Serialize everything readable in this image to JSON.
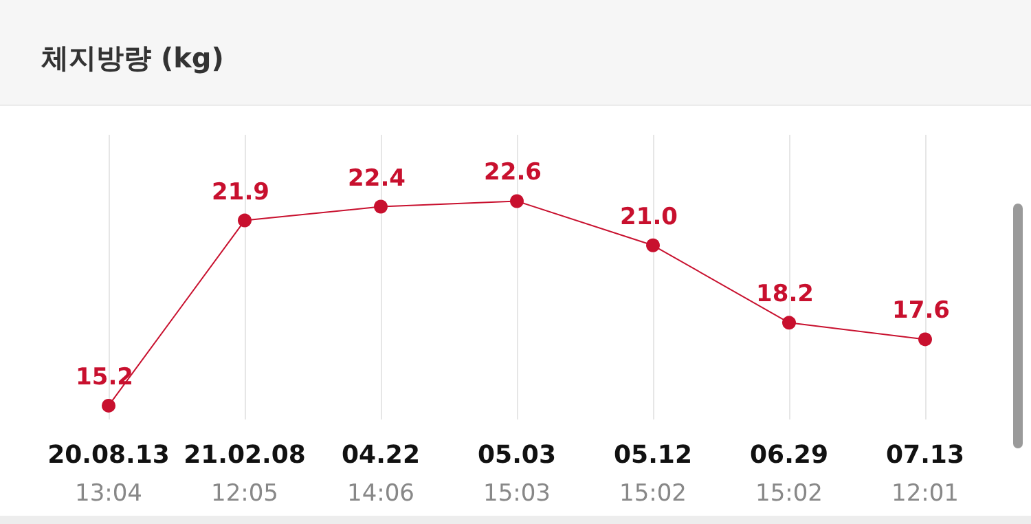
{
  "chart_data": {
    "type": "line",
    "title": "체지방량 (kg)",
    "categories": [
      "20.08.13\n13:04",
      "21.02.08\n12:05",
      "04.22\n14:06",
      "05.03\n15:03",
      "05.12\n15:02",
      "06.29\n15:02",
      "07.13\n12:01"
    ],
    "series": [
      {
        "color": "#c8102e",
        "values": [
          15.2,
          21.9,
          22.4,
          22.6,
          21.0,
          18.2,
          17.6
        ],
        "value_labels": [
          "15.2",
          "21.9",
          "22.4",
          "22.6",
          "21.0",
          "18.2",
          "17.6"
        ]
      }
    ],
    "ylim": [
      14.7,
      25
    ],
    "tick_labels": "x",
    "grid": "x",
    "marker": "circle",
    "line_style": "solid"
  }
}
